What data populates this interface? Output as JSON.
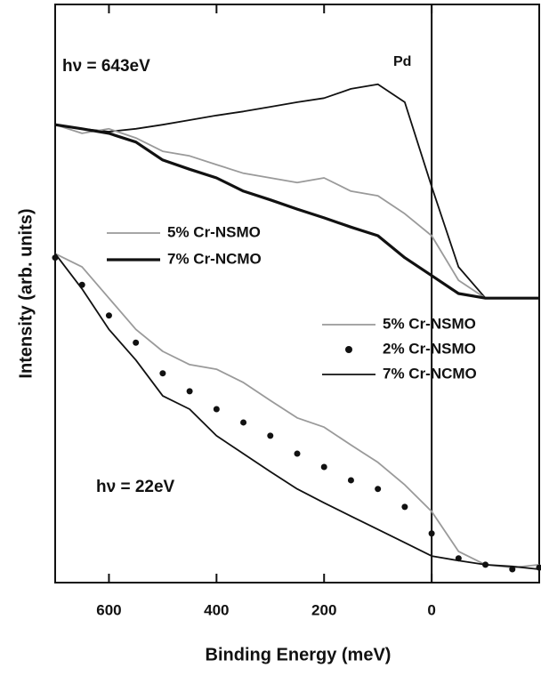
{
  "chart_data": [
    {
      "type": "line",
      "label": "hν = 643eV",
      "ylabel": "Intensity (arb. units)",
      "xlabel": "Binding Energy (meV)",
      "xlim": [
        700,
        -200
      ],
      "ylim": [
        0,
        100
      ],
      "xticks": [
        600,
        400,
        200,
        0
      ],
      "vline": 0,
      "x": [
        700,
        650,
        600,
        550,
        500,
        450,
        400,
        350,
        300,
        250,
        200,
        150,
        100,
        50,
        0,
        -50,
        -100,
        -150,
        -200
      ],
      "series": [
        {
          "name": "Pd",
          "direct_label": true,
          "color": "#111111",
          "line_width": 1.8,
          "values": [
            79.2,
            78.5,
            78.0,
            78.5,
            79.2,
            80.0,
            80.8,
            81.5,
            82.3,
            83.1,
            83.8,
            85.4,
            86.2,
            83.1,
            68.5,
            54.6,
            49.2,
            49.2,
            49.2
          ]
        },
        {
          "name": "5% Cr-NSMO",
          "color": "#9a9a9a",
          "line_width": 1.8,
          "values": [
            79.2,
            77.7,
            78.5,
            76.9,
            74.6,
            73.8,
            72.3,
            70.8,
            70.0,
            69.2,
            70.0,
            67.7,
            66.9,
            63.8,
            60.0,
            52.3,
            49.2,
            49.2,
            49.2
          ]
        },
        {
          "name": "7% Cr-NCMO",
          "color": "#111111",
          "line_width": 3.2,
          "values": [
            79.2,
            78.5,
            77.7,
            76.2,
            73.1,
            71.5,
            70.0,
            67.7,
            66.2,
            64.6,
            63.1,
            61.5,
            60.0,
            56.2,
            53.1,
            50.0,
            49.2,
            49.2,
            49.2
          ]
        }
      ]
    },
    {
      "type": "line",
      "label": "hν = 22eV",
      "x": [
        700,
        650,
        600,
        550,
        500,
        450,
        400,
        350,
        300,
        250,
        200,
        150,
        100,
        50,
        0,
        -50,
        -100,
        -150,
        -200
      ],
      "series": [
        {
          "name": "5% Cr-NSMO",
          "color": "#9a9a9a",
          "line_width": 1.8,
          "values": [
            56.9,
            54.6,
            49.2,
            43.8,
            40.0,
            37.7,
            36.9,
            34.6,
            31.5,
            28.5,
            26.9,
            23.8,
            20.8,
            16.9,
            12.3,
            5.4,
            3.1,
            2.6,
            3.1
          ]
        },
        {
          "name": "2% Cr-NSMO",
          "marker": "dot",
          "color": "#111111",
          "values": [
            56.2,
            51.5,
            46.2,
            41.5,
            36.2,
            33.1,
            30.0,
            27.7,
            25.4,
            22.3,
            20.0,
            17.7,
            16.2,
            13.1,
            8.5,
            4.2,
            3.1,
            2.3,
            2.6
          ]
        },
        {
          "name": "7% Cr-NCMO",
          "color": "#111111",
          "line_width": 1.8,
          "values": [
            56.9,
            50.8,
            43.8,
            38.5,
            32.3,
            30.0,
            25.4,
            22.3,
            19.2,
            16.2,
            13.8,
            11.5,
            9.2,
            6.9,
            4.6,
            3.8,
            3.1,
            2.8,
            2.3
          ]
        }
      ]
    }
  ]
}
